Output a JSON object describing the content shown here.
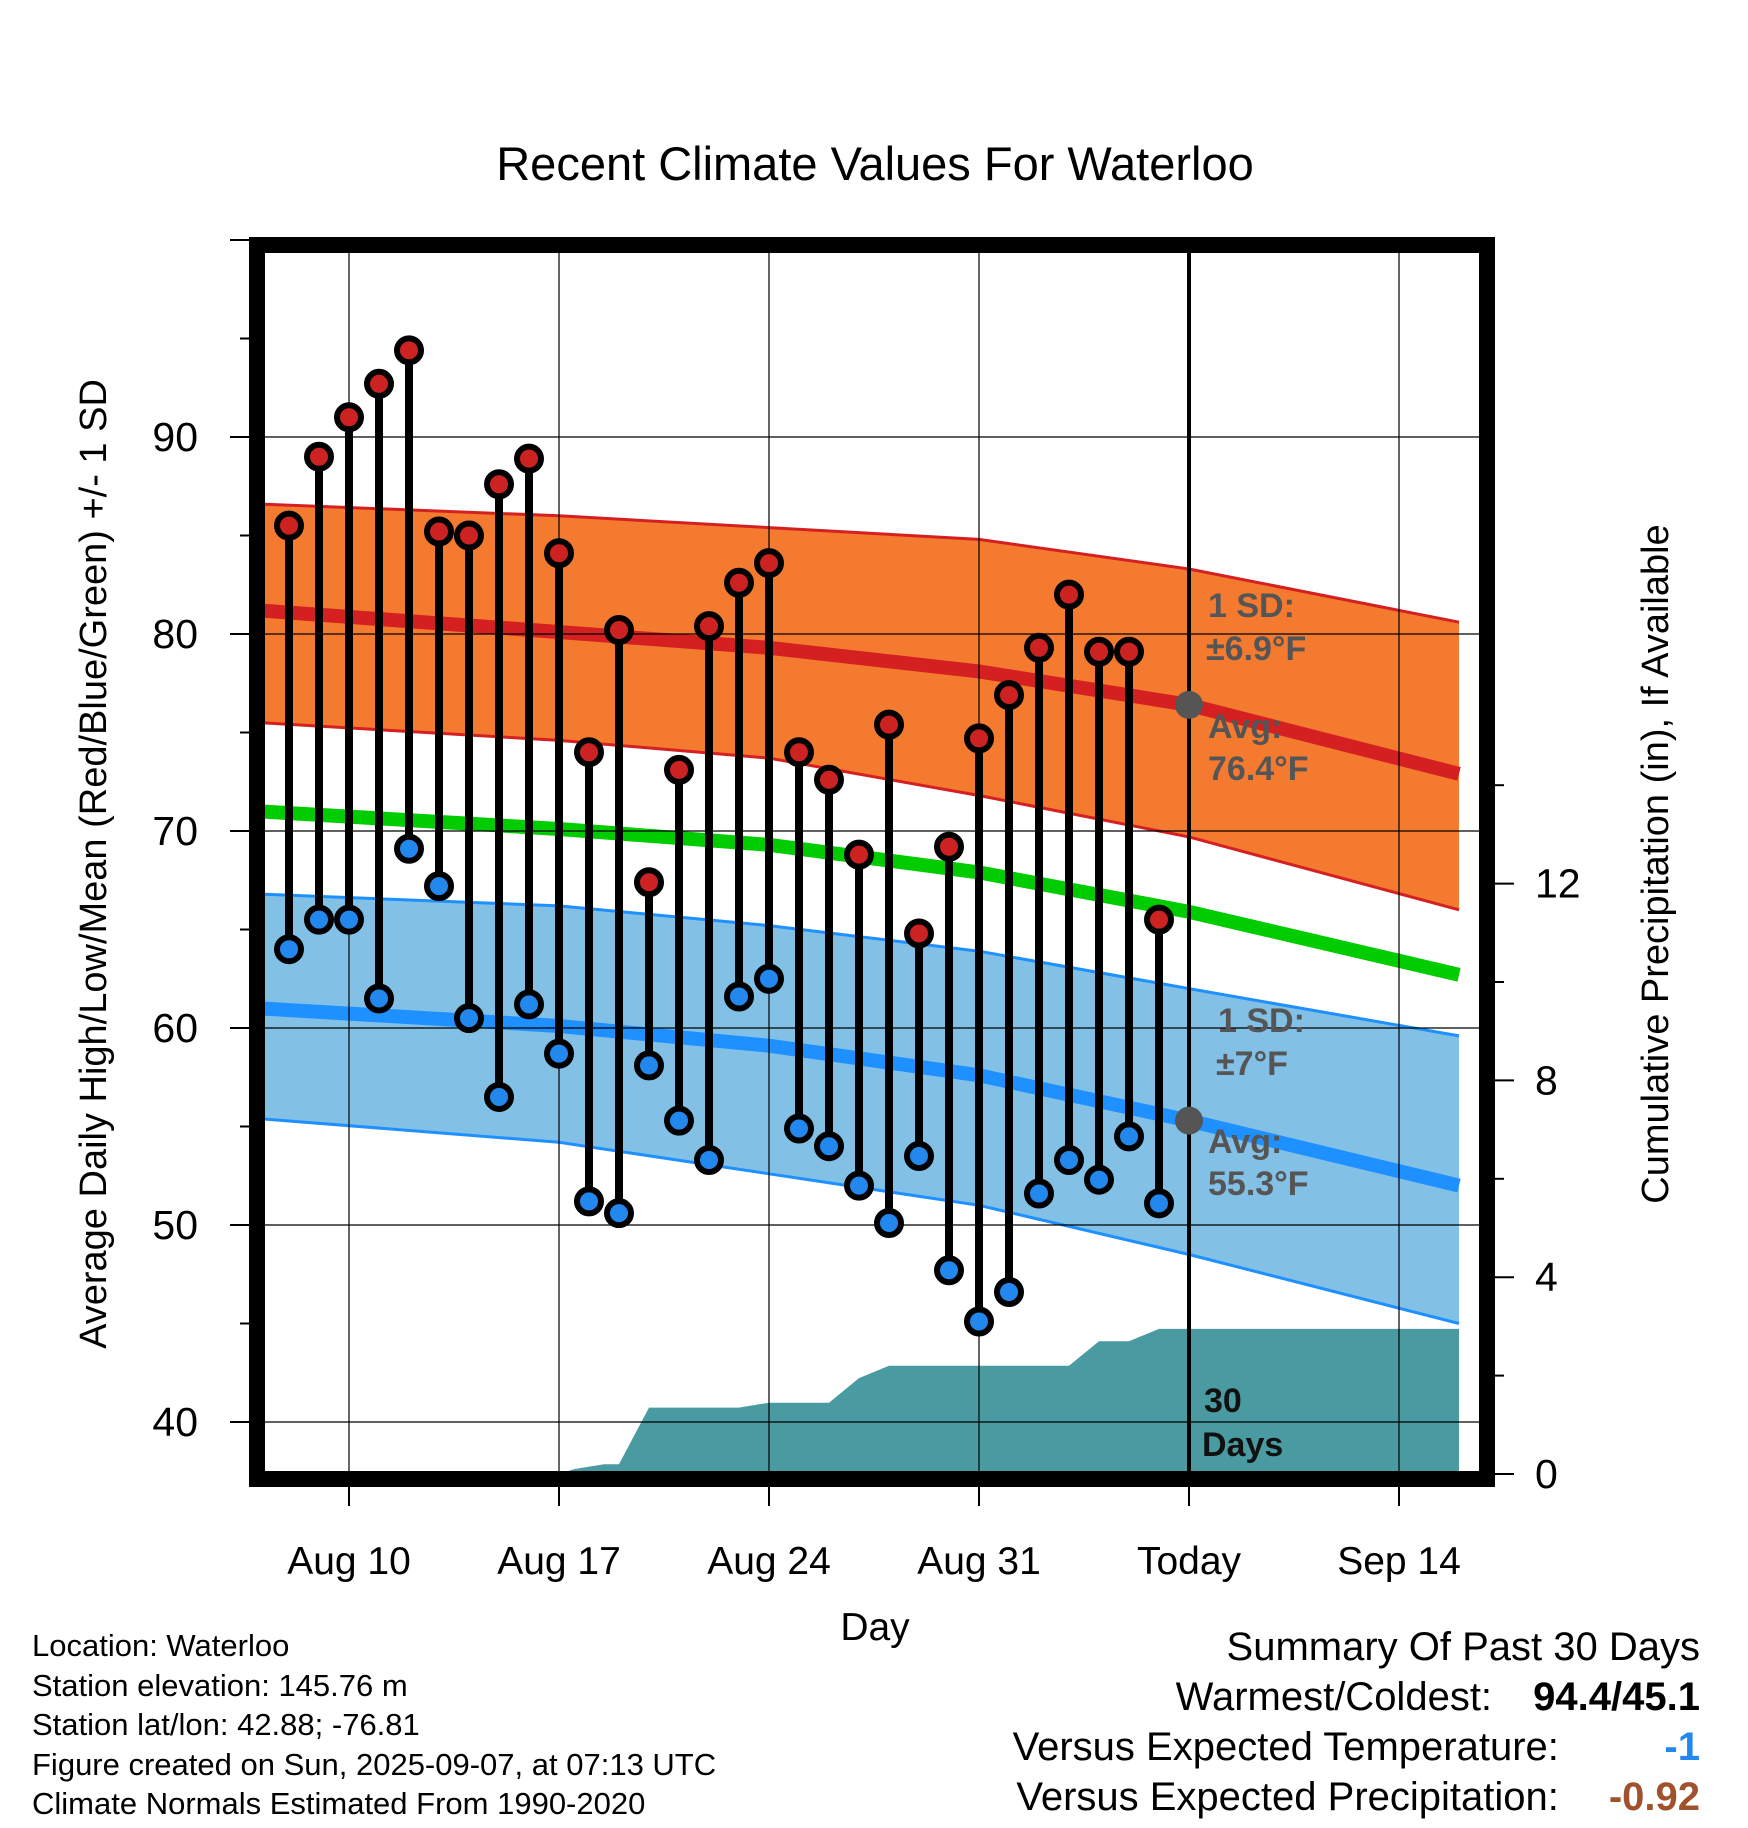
{
  "chart_data": {
    "type": "line",
    "title": "Recent Climate Values For Waterloo",
    "xlabel": "Day",
    "ylabel": "Average Daily High/Low/Mean (Red/Blue/Green) +/- 1 SD",
    "y2label": "Cumulative Precipitation (in), If Available",
    "ylim": [
      37.5,
      100.5
    ],
    "y_ticks": [
      40,
      50,
      60,
      70,
      80,
      90
    ],
    "y2lim": [
      0,
      21
    ],
    "y2_ticks": [
      0,
      4,
      8,
      12
    ],
    "xlim": [
      -3.5,
      37.5
    ],
    "x_ticks": [
      {
        "day": 0,
        "label": "Aug 10"
      },
      {
        "day": 7,
        "label": "Aug 17"
      },
      {
        "day": 14,
        "label": "Aug 24"
      },
      {
        "day": 21,
        "label": "Aug 31"
      },
      {
        "day": 28,
        "label": "Today"
      },
      {
        "day": 35,
        "label": "Sep 14"
      }
    ],
    "grid": true,
    "today_day": 28,
    "normals_x": [
      -3,
      7,
      14,
      21,
      28,
      37
    ],
    "normal_high": [
      81.2,
      80.1,
      79.3,
      78.1,
      76.4,
      72.9
    ],
    "normal_high_upper": [
      86.6,
      86.0,
      85.4,
      84.8,
      83.3,
      80.6
    ],
    "normal_high_lower": [
      75.5,
      74.6,
      73.7,
      71.8,
      69.7,
      66.0
    ],
    "normal_mean": [
      71.0,
      70.1,
      69.3,
      67.9,
      65.9,
      62.7
    ],
    "normal_low": [
      61.0,
      60.1,
      59.1,
      57.6,
      55.3,
      52.0
    ],
    "normal_low_upper": [
      66.8,
      66.2,
      65.2,
      63.9,
      62.0,
      59.6
    ],
    "normal_low_lower": [
      55.4,
      54.2,
      52.6,
      51.0,
      48.5,
      45.0
    ],
    "series": [
      {
        "name": "Daily High",
        "color": "#cc2222",
        "x": [
          -2,
          -1,
          0,
          1,
          2,
          3,
          4,
          5,
          6,
          7,
          8,
          9,
          10,
          11,
          12,
          13,
          14,
          15,
          16,
          17,
          18,
          19,
          20,
          21,
          22,
          23,
          24,
          25,
          26,
          27
        ],
        "values": [
          85.5,
          89.0,
          91.0,
          92.7,
          94.4,
          85.2,
          85.0,
          87.6,
          88.9,
          84.1,
          74.0,
          80.2,
          67.4,
          73.1,
          80.4,
          82.6,
          83.6,
          74.0,
          72.6,
          68.8,
          75.4,
          64.8,
          69.2,
          74.7,
          76.9,
          79.3,
          82.0,
          79.1,
          79.1,
          65.5
        ]
      },
      {
        "name": "Daily Low",
        "color": "#2288ee",
        "x": [
          -2,
          -1,
          0,
          1,
          2,
          3,
          4,
          5,
          6,
          7,
          8,
          9,
          10,
          11,
          12,
          13,
          14,
          15,
          16,
          17,
          18,
          19,
          20,
          21,
          22,
          23,
          24,
          25,
          26,
          27
        ],
        "values": [
          64.0,
          65.5,
          65.5,
          61.5,
          69.1,
          67.2,
          60.5,
          56.5,
          61.2,
          58.7,
          51.2,
          50.6,
          58.1,
          55.3,
          53.3,
          61.6,
          62.5,
          54.9,
          54.0,
          52.0,
          50.1,
          53.5,
          47.7,
          45.1,
          46.6,
          51.6,
          53.3,
          52.3,
          54.5,
          51.1
        ]
      }
    ],
    "precip": {
      "x": [
        7,
        7.5,
        8.5,
        9,
        10,
        11,
        12,
        13,
        14,
        15,
        16,
        17,
        18,
        19,
        20,
        21,
        22,
        23,
        24,
        25,
        26,
        27,
        28,
        37
      ],
      "values": [
        0,
        0.1,
        0.2,
        0.2,
        1.35,
        1.35,
        1.35,
        1.35,
        1.45,
        1.45,
        1.45,
        1.95,
        2.2,
        2.2,
        2.2,
        2.2,
        2.2,
        2.2,
        2.2,
        2.7,
        2.7,
        2.95,
        2.95,
        2.95
      ]
    },
    "annotations": {
      "high_sd_label": "1 SD:",
      "high_sd_value": "±6.9°F",
      "high_avg_label": "Avg:",
      "high_avg_value": "76.4°F",
      "low_sd_label": "1 SD:",
      "low_sd_value": "±7°F",
      "low_avg_label": "Avg:",
      "low_avg_value": "55.3°F",
      "period_number": "30",
      "period_unit": "Days"
    },
    "colors": {
      "high_band": "#f47a30",
      "high_line": "#d42020",
      "mean_line": "#00cc00",
      "low_band": "#82c0e6",
      "low_line": "#1e90ff",
      "precip": "#4a9aa2",
      "annotation_text": "#555555"
    }
  },
  "footer": {
    "location": "Location: Waterloo",
    "elevation": "Station elevation: 145.76 m",
    "latlon": "Station lat/lon: 42.88; -76.81",
    "created": "Figure created on Sun, 2025-09-07, at 07:13 UTC",
    "normals": "Climate Normals Estimated From 1990-2020"
  },
  "summary": {
    "title": "Summary Of Past 30 Days",
    "warm_cold_label": "Warmest/Coldest:",
    "warm_cold_value": "94.4/45.1",
    "temp_label": "Versus Expected Temperature:",
    "temp_value": "-1",
    "temp_color": "#2288ee",
    "precip_label": "Versus Expected Precipitation:",
    "precip_value": "-0.92",
    "precip_color": "#a0522d"
  }
}
